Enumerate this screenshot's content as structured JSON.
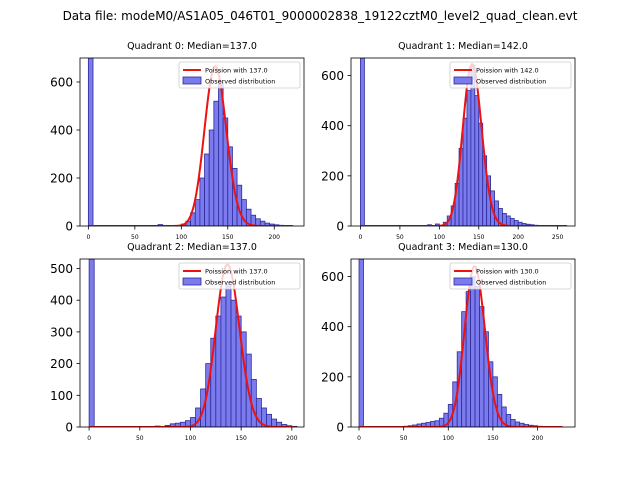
{
  "figure": {
    "suptitle": "Data file: modeM0/AS1A05_046T01_9000002838_19122cztM0_level2_quad_clean.evt",
    "colors": {
      "bar_fill": "#7b7bee",
      "bar_edge": "#2c2c9c",
      "curve": "#ee1111"
    }
  },
  "chart_data": [
    {
      "type": "bar",
      "title": "Quadrant 0: Median=137.0",
      "legend": [
        "Poission with 137.0",
        "Observed distribution"
      ],
      "legend_position": "top-right",
      "xlim": [
        -9,
        232
      ],
      "ylim": [
        0,
        700
      ],
      "xticks": [
        0,
        50,
        100,
        150,
        200
      ],
      "yticks": [
        0,
        200,
        400,
        600
      ],
      "bin_width": 5,
      "bins": [
        [
          0,
          700
        ],
        [
          75,
          6
        ],
        [
          100,
          8
        ],
        [
          105,
          20
        ],
        [
          110,
          55
        ],
        [
          115,
          110
        ],
        [
          120,
          200
        ],
        [
          125,
          300
        ],
        [
          130,
          400
        ],
        [
          135,
          520
        ],
        [
          140,
          600
        ],
        [
          145,
          450
        ],
        [
          150,
          330
        ],
        [
          155,
          240
        ],
        [
          160,
          170
        ],
        [
          165,
          110
        ],
        [
          170,
          70
        ],
        [
          175,
          45
        ],
        [
          180,
          30
        ],
        [
          185,
          20
        ],
        [
          190,
          12
        ],
        [
          195,
          8
        ],
        [
          200,
          5
        ],
        [
          205,
          3
        ],
        [
          210,
          2
        ],
        [
          215,
          1
        ]
      ],
      "poisson_mean": 137.0,
      "poisson_peak": 665,
      "curve_x_range": [
        0,
        220
      ]
    },
    {
      "type": "bar",
      "title": "Quadrant 1: Median=142.0",
      "legend": [
        "Poission with 142.0",
        "Observed distribution"
      ],
      "legend_position": "top-right",
      "xlim": [
        -12,
        272
      ],
      "ylim": [
        0,
        670
      ],
      "xticks": [
        0,
        50,
        100,
        150,
        200,
        250
      ],
      "yticks": [
        0,
        200,
        400,
        600
      ],
      "bin_width": 5,
      "bins": [
        [
          0,
          670
        ],
        [
          85,
          5
        ],
        [
          95,
          8
        ],
        [
          105,
          15
        ],
        [
          110,
          40
        ],
        [
          115,
          80
        ],
        [
          120,
          170
        ],
        [
          125,
          310
        ],
        [
          130,
          430
        ],
        [
          135,
          540
        ],
        [
          140,
          640
        ],
        [
          145,
          520
        ],
        [
          150,
          410
        ],
        [
          155,
          280
        ],
        [
          160,
          200
        ],
        [
          165,
          140
        ],
        [
          170,
          100
        ],
        [
          175,
          70
        ],
        [
          180,
          50
        ],
        [
          185,
          40
        ],
        [
          190,
          30
        ],
        [
          195,
          22
        ],
        [
          200,
          15
        ],
        [
          205,
          10
        ],
        [
          210,
          7
        ],
        [
          215,
          5
        ],
        [
          220,
          3
        ],
        [
          225,
          2
        ],
        [
          230,
          2
        ],
        [
          240,
          1
        ],
        [
          250,
          1
        ]
      ],
      "poisson_mean": 142.0,
      "poisson_peak": 645,
      "curve_x_range": [
        0,
        262
      ]
    },
    {
      "type": "bar",
      "title": "Quadrant 2: Median=137.0",
      "legend": [
        "Poission with 137.0",
        "Observed distribution"
      ],
      "legend_position": "top-right",
      "xlim": [
        -9,
        212
      ],
      "ylim": [
        0,
        530
      ],
      "xticks": [
        0,
        50,
        100,
        150,
        200
      ],
      "yticks": [
        0,
        100,
        200,
        300,
        400,
        500
      ],
      "bin_width": 5,
      "bins": [
        [
          0,
          530
        ],
        [
          65,
          3
        ],
        [
          75,
          5
        ],
        [
          80,
          10
        ],
        [
          85,
          12
        ],
        [
          90,
          15
        ],
        [
          95,
          20
        ],
        [
          100,
          30
        ],
        [
          105,
          60
        ],
        [
          110,
          120
        ],
        [
          115,
          200
        ],
        [
          120,
          280
        ],
        [
          125,
          350
        ],
        [
          130,
          410
        ],
        [
          135,
          450
        ],
        [
          140,
          400
        ],
        [
          145,
          350
        ],
        [
          150,
          300
        ],
        [
          155,
          230
        ],
        [
          160,
          150
        ],
        [
          165,
          90
        ],
        [
          170,
          60
        ],
        [
          175,
          40
        ],
        [
          180,
          25
        ],
        [
          185,
          15
        ],
        [
          190,
          8
        ],
        [
          195,
          4
        ],
        [
          200,
          2
        ]
      ],
      "poisson_mean": 137.0,
      "poisson_peak": 512,
      "curve_x_range": [
        0,
        202
      ]
    },
    {
      "type": "bar",
      "title": "Quadrant 3: Median=130.0",
      "legend": [
        "Poission with 130.0",
        "Observed distribution"
      ],
      "legend_position": "top-right",
      "xlim": [
        -9,
        242
      ],
      "ylim": [
        0,
        670
      ],
      "xticks": [
        0,
        50,
        100,
        150,
        200
      ],
      "yticks": [
        0,
        200,
        400,
        600
      ],
      "bin_width": 5,
      "bins": [
        [
          0,
          670
        ],
        [
          50,
          3
        ],
        [
          55,
          5
        ],
        [
          60,
          8
        ],
        [
          65,
          12
        ],
        [
          70,
          15
        ],
        [
          75,
          18
        ],
        [
          80,
          22
        ],
        [
          85,
          25
        ],
        [
          90,
          35
        ],
        [
          95,
          55
        ],
        [
          100,
          90
        ],
        [
          105,
          180
        ],
        [
          110,
          300
        ],
        [
          115,
          460
        ],
        [
          120,
          540
        ],
        [
          125,
          600
        ],
        [
          130,
          560
        ],
        [
          135,
          480
        ],
        [
          140,
          380
        ],
        [
          145,
          260
        ],
        [
          150,
          200
        ],
        [
          155,
          130
        ],
        [
          160,
          80
        ],
        [
          165,
          50
        ],
        [
          170,
          30
        ],
        [
          175,
          20
        ],
        [
          180,
          15
        ],
        [
          185,
          10
        ],
        [
          190,
          7
        ],
        [
          195,
          5
        ],
        [
          200,
          3
        ],
        [
          205,
          2
        ],
        [
          210,
          2
        ],
        [
          215,
          1
        ],
        [
          220,
          1
        ]
      ],
      "poisson_mean": 130.0,
      "poisson_peak": 640,
      "curve_x_range": [
        0,
        228
      ]
    }
  ]
}
